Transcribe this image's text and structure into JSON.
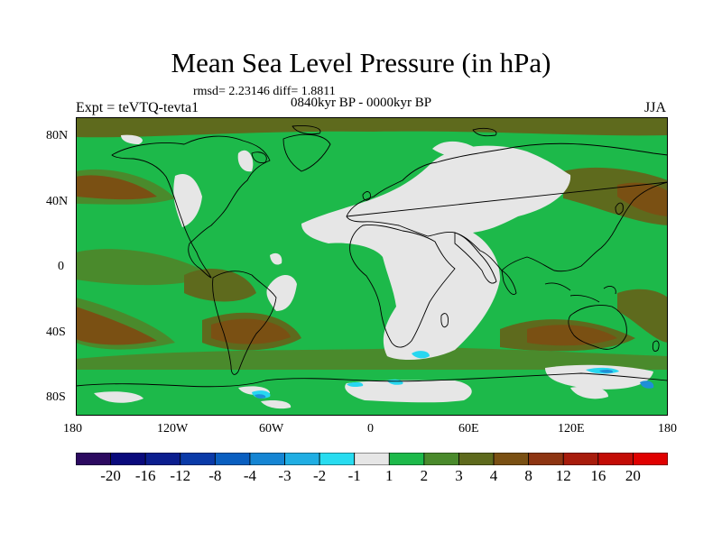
{
  "title": "Mean Sea Level Pressure (in hPa)",
  "stats": "rmsd= 2.23146 diff= 1.8811",
  "period": "0840kyr BP - 0000kyr BP",
  "experiment": "Expt = teVTQ-tevta1",
  "season": "JJA",
  "axes": {
    "lat_labels": [
      "80N",
      "40N",
      "0",
      "40S",
      "80S"
    ],
    "lon_labels": [
      "180",
      "120W",
      "60W",
      "0",
      "60E",
      "120E",
      "180"
    ]
  },
  "colors": {
    "ocean_base": "#1db94a",
    "mid_green": "#4a8a2c",
    "dark_olive": "#5e6a1d",
    "brown": "#7a5013",
    "light_gray": "#e6e6e6",
    "cyan": "#27d7f0",
    "blue": "#1f8fd7",
    "coast": "#000000"
  },
  "colorbar": {
    "labels": [
      "-20",
      "-16",
      "-12",
      "-8",
      "-4",
      "-3",
      "-2",
      "-1",
      "1",
      "2",
      "3",
      "4",
      "8",
      "12",
      "16",
      "20"
    ],
    "colors": [
      "#2c0a60",
      "#0a0a7c",
      "#0b1e8f",
      "#0a3aa8",
      "#0a5fc0",
      "#1585d3",
      "#20aee3",
      "#28dcf0",
      "#e6e6e6",
      "#1db94a",
      "#4a8a2c",
      "#5e6a1d",
      "#7a5013",
      "#8e3512",
      "#a81c0c",
      "#c30c06",
      "#e00000"
    ]
  }
}
